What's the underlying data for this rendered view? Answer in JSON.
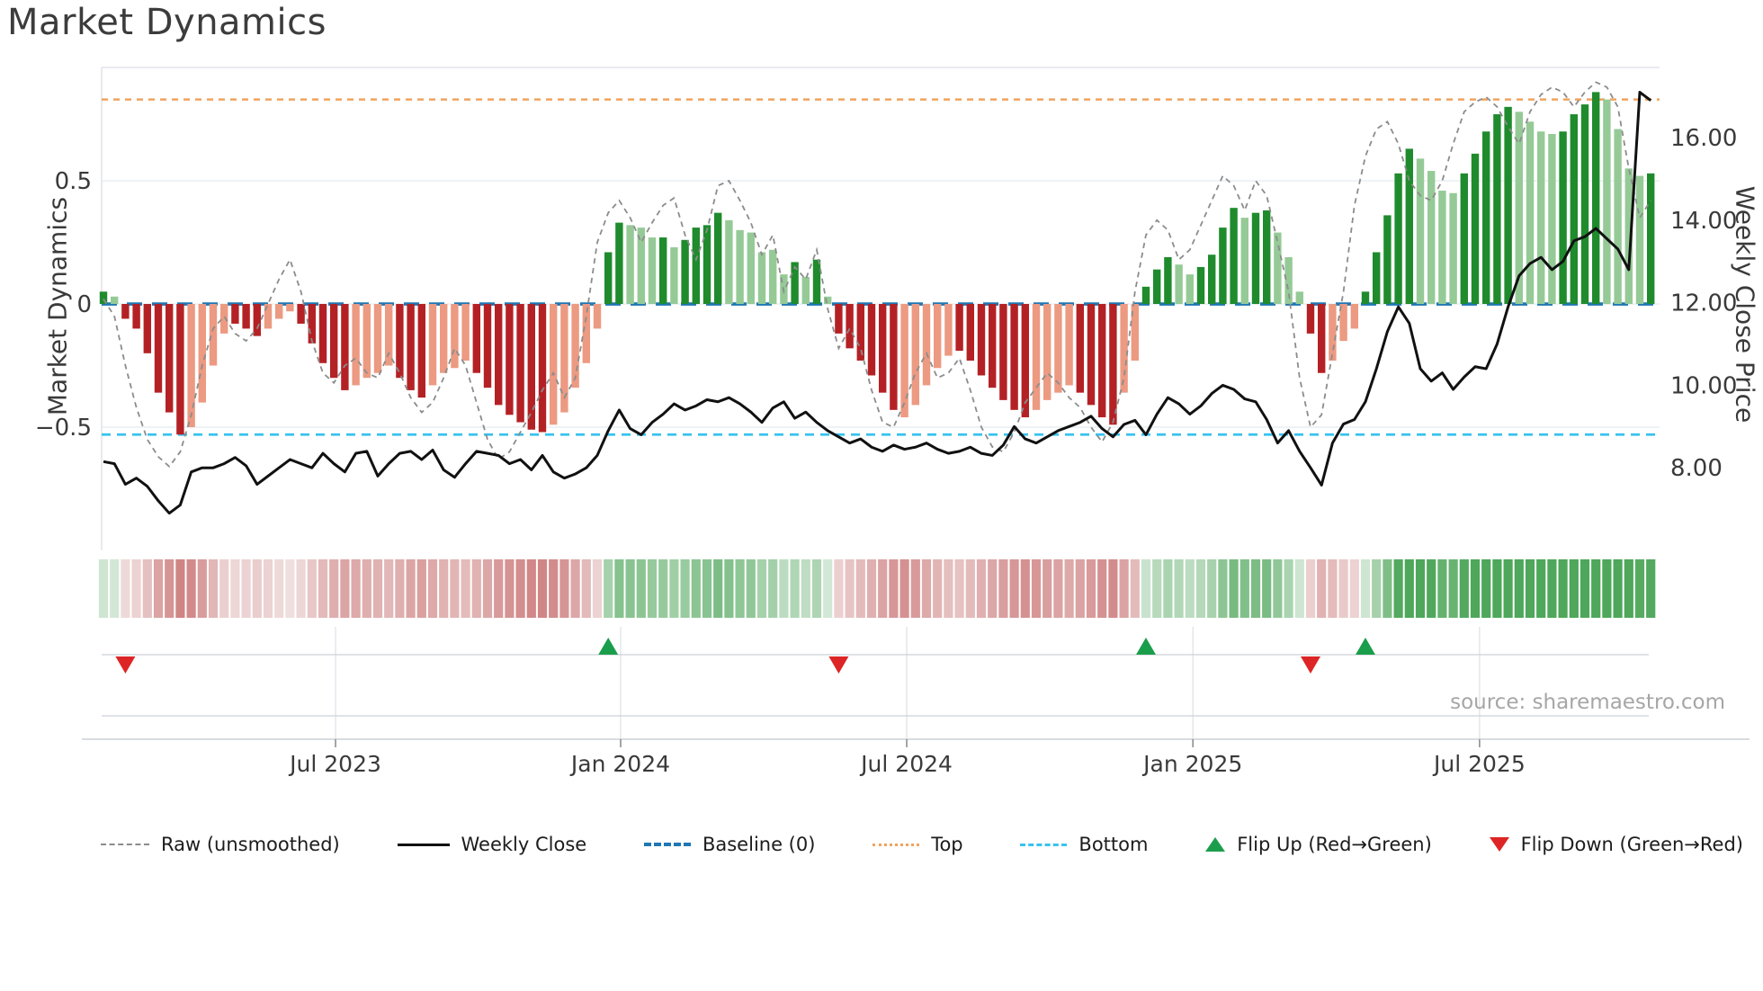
{
  "title": "Market Dynamics",
  "source_note": "source: sharemaestro.com",
  "axes": {
    "left_label": "Market Dynamics",
    "right_label": "Weekly Close Price",
    "left_ticks": [
      {
        "label": "0.5",
        "value": 0.5
      },
      {
        "label": "0",
        "value": 0
      },
      {
        "label": "−0.5",
        "value": -0.5
      }
    ],
    "right_ticks": [
      {
        "label": "16.00",
        "value": 16
      },
      {
        "label": "14.00",
        "value": 14
      },
      {
        "label": "12.00",
        "value": 12
      },
      {
        "label": "10.00",
        "value": 10
      },
      {
        "label": "8.00",
        "value": 8
      }
    ]
  },
  "colors": {
    "dark_green": "#1f8b2d",
    "light_green": "#95ca97",
    "dark_red": "#b42125",
    "light_red": "#ec9a82",
    "baseline": "#1f77b4",
    "top_line": "#f0a35e",
    "bottom_line": "#38c2ef",
    "raw_line": "#8c8c8c",
    "close_line": "#111111",
    "flip_up": "#1b9e4b",
    "flip_down": "#dd2525",
    "grid": "#e9edf2",
    "spine": "#d9dde3",
    "panel_line": "#ccd1d6",
    "heat_green_max": "#4ea75a",
    "heat_red_max": "#cf8181"
  },
  "legend": [
    {
      "id": "raw",
      "label": "Raw (unsmoothed)",
      "swatch": "sw-dash-gray"
    },
    {
      "id": "close",
      "label": "Weekly Close",
      "swatch": "sw-line-black"
    },
    {
      "id": "baseline",
      "label": "Baseline (0)",
      "swatch": "sw-dash-blue"
    },
    {
      "id": "top",
      "label": "Top",
      "swatch": "sw-dot-orange"
    },
    {
      "id": "bottom",
      "label": "Bottom",
      "swatch": "sw-dot-cyan"
    },
    {
      "id": "flip-up",
      "label": "Flip Up (Red→Green)",
      "swatch": "sw-tri-up"
    },
    {
      "id": "flip-down",
      "label": "Flip Down (Green→Red)",
      "swatch": "sw-tri-down"
    }
  ],
  "chart_data": {
    "type": "bar",
    "subtype": "weekly oscillator bars + raw dashed line (left axis) + weekly close price line (right axis) + signal heatmap strip + flip markers",
    "weeks": 142,
    "x_ticks": [
      {
        "label": "Jul 2023",
        "week": 21.15
      },
      {
        "label": "Jan 2024",
        "week": 47.13
      },
      {
        "label": "Jul 2024",
        "week": 73.2
      },
      {
        "label": "Jan 2025",
        "week": 99.28
      },
      {
        "label": "Jul 2025",
        "week": 125.4
      }
    ],
    "ylim_left": [
      -1.0,
      0.96
    ],
    "ylim_right": [
      6.0,
      17.7
    ],
    "baseline": 0,
    "top_level": 0.83,
    "bottom_level": -0.53,
    "grid_values_left": [
      0.5,
      0,
      -0.5
    ],
    "oscillator_values": [
      0.05,
      0.03,
      -0.06,
      -0.1,
      -0.2,
      -0.36,
      -0.44,
      -0.53,
      -0.5,
      -0.4,
      -0.25,
      -0.12,
      -0.08,
      -0.1,
      -0.13,
      -0.1,
      -0.06,
      -0.03,
      -0.08,
      -0.16,
      -0.24,
      -0.3,
      -0.35,
      -0.33,
      -0.3,
      -0.28,
      -0.25,
      -0.3,
      -0.35,
      -0.38,
      -0.33,
      -0.28,
      -0.26,
      -0.23,
      -0.28,
      -0.34,
      -0.41,
      -0.45,
      -0.48,
      -0.51,
      -0.52,
      -0.49,
      -0.44,
      -0.34,
      -0.24,
      -0.1,
      0.21,
      0.33,
      0.32,
      0.31,
      0.27,
      0.27,
      0.23,
      0.26,
      0.31,
      0.32,
      0.37,
      0.34,
      0.3,
      0.29,
      0.21,
      0.22,
      0.12,
      0.17,
      0.11,
      0.18,
      0.03,
      -0.12,
      -0.18,
      -0.23,
      -0.29,
      -0.36,
      -0.43,
      -0.46,
      -0.41,
      -0.33,
      -0.26,
      -0.21,
      -0.19,
      -0.23,
      -0.29,
      -0.34,
      -0.39,
      -0.43,
      -0.46,
      -0.43,
      -0.39,
      -0.36,
      -0.33,
      -0.36,
      -0.41,
      -0.46,
      -0.49,
      -0.36,
      -0.23,
      0.07,
      0.14,
      0.19,
      0.16,
      0.12,
      0.15,
      0.2,
      0.31,
      0.39,
      0.35,
      0.37,
      0.38,
      0.29,
      0.19,
      0.05,
      -0.12,
      -0.28,
      -0.23,
      -0.15,
      -0.1,
      0.05,
      0.21,
      0.36,
      0.53,
      0.63,
      0.59,
      0.54,
      0.46,
      0.45,
      0.53,
      0.61,
      0.7,
      0.77,
      0.8,
      0.78,
      0.74,
      0.7,
      0.69,
      0.7,
      0.77,
      0.81,
      0.86,
      0.83,
      0.71,
      0.55,
      0.52,
      0.53
    ],
    "oscillator_shades": "DLDDDDDDLLLLDDDLLLDDDDDLLLLDDDLLLLDDDDDDDLLLLLDDLLLDLDDDDLLLLLLDLDLDDDDDDLLLLLDDDDDDDLLLLDDDDLLDDDLLDDDDLDDLLLDDLLLDDDDDLLLLDDDDDLLLLDDDDLLLLD",
    "weekly_close": [
      8.15,
      8.1,
      7.6,
      7.75,
      7.55,
      7.2,
      6.9,
      7.1,
      7.9,
      8.0,
      8.0,
      8.1,
      8.25,
      8.05,
      7.6,
      7.8,
      8.0,
      8.2,
      8.1,
      8.0,
      8.35,
      8.1,
      7.9,
      8.35,
      8.4,
      7.8,
      8.1,
      8.35,
      8.4,
      8.2,
      8.43,
      7.95,
      7.77,
      8.1,
      8.4,
      8.35,
      8.3,
      8.1,
      8.2,
      7.95,
      8.3,
      7.9,
      7.75,
      7.85,
      8.0,
      8.3,
      8.9,
      9.4,
      8.95,
      8.8,
      9.1,
      9.3,
      9.55,
      9.4,
      9.5,
      9.65,
      9.6,
      9.7,
      9.55,
      9.35,
      9.1,
      9.45,
      9.6,
      9.2,
      9.35,
      9.1,
      8.9,
      8.75,
      8.6,
      8.7,
      8.5,
      8.4,
      8.55,
      8.45,
      8.5,
      8.6,
      8.45,
      8.35,
      8.4,
      8.5,
      8.35,
      8.3,
      8.55,
      9.0,
      8.7,
      8.6,
      8.75,
      8.9,
      9.0,
      9.1,
      9.25,
      8.95,
      8.75,
      9.05,
      9.15,
      8.8,
      9.3,
      9.7,
      9.55,
      9.3,
      9.5,
      9.8,
      10.0,
      9.9,
      9.67,
      9.6,
      9.17,
      8.6,
      8.9,
      8.4,
      8.0,
      7.58,
      8.6,
      9.06,
      9.17,
      9.6,
      10.4,
      11.3,
      11.9,
      11.5,
      10.4,
      10.1,
      10.3,
      9.9,
      10.2,
      10.45,
      10.4,
      11.0,
      11.9,
      12.65,
      12.95,
      13.1,
      12.8,
      13.0,
      13.5,
      13.6,
      13.8,
      13.55,
      13.3,
      12.8,
      17.1,
      16.9
    ],
    "raw_values": [
      0.02,
      -0.05,
      -0.25,
      -0.42,
      -0.55,
      -0.62,
      -0.66,
      -0.6,
      -0.45,
      -0.25,
      -0.1,
      -0.05,
      -0.12,
      -0.15,
      -0.1,
      0.0,
      0.1,
      0.18,
      0.05,
      -0.15,
      -0.28,
      -0.32,
      -0.25,
      -0.22,
      -0.28,
      -0.3,
      -0.2,
      -0.28,
      -0.38,
      -0.44,
      -0.4,
      -0.3,
      -0.18,
      -0.25,
      -0.4,
      -0.55,
      -0.63,
      -0.6,
      -0.52,
      -0.44,
      -0.35,
      -0.28,
      -0.38,
      -0.3,
      -0.05,
      0.25,
      0.37,
      0.42,
      0.35,
      0.25,
      0.33,
      0.4,
      0.43,
      0.28,
      0.18,
      0.3,
      0.48,
      0.5,
      0.42,
      0.33,
      0.2,
      0.28,
      0.05,
      0.15,
      0.1,
      0.22,
      -0.02,
      -0.18,
      -0.1,
      -0.18,
      -0.35,
      -0.48,
      -0.5,
      -0.4,
      -0.28,
      -0.2,
      -0.3,
      -0.28,
      -0.22,
      -0.35,
      -0.5,
      -0.58,
      -0.6,
      -0.52,
      -0.4,
      -0.34,
      -0.28,
      -0.32,
      -0.38,
      -0.42,
      -0.5,
      -0.56,
      -0.48,
      -0.3,
      0.05,
      0.28,
      0.34,
      0.3,
      0.18,
      0.22,
      0.32,
      0.42,
      0.52,
      0.48,
      0.38,
      0.5,
      0.44,
      0.25,
      0.05,
      -0.3,
      -0.5,
      -0.45,
      -0.2,
      0.05,
      0.4,
      0.6,
      0.71,
      0.74,
      0.65,
      0.5,
      0.44,
      0.42,
      0.5,
      0.65,
      0.78,
      0.82,
      0.84,
      0.8,
      0.72,
      0.65,
      0.78,
      0.85,
      0.88,
      0.86,
      0.8,
      0.86,
      0.9,
      0.88,
      0.8,
      0.55,
      0.35,
      0.42
    ],
    "flips": [
      {
        "week": 2,
        "dir": "down"
      },
      {
        "week": 46,
        "dir": "up"
      },
      {
        "week": 67,
        "dir": "down"
      },
      {
        "week": 95,
        "dir": "up"
      },
      {
        "week": 110,
        "dir": "down"
      },
      {
        "week": 115,
        "dir": "up"
      }
    ],
    "heatmap": "one cell per week, green for positive oscillator, red for negative, intensity proportional to |value|"
  }
}
